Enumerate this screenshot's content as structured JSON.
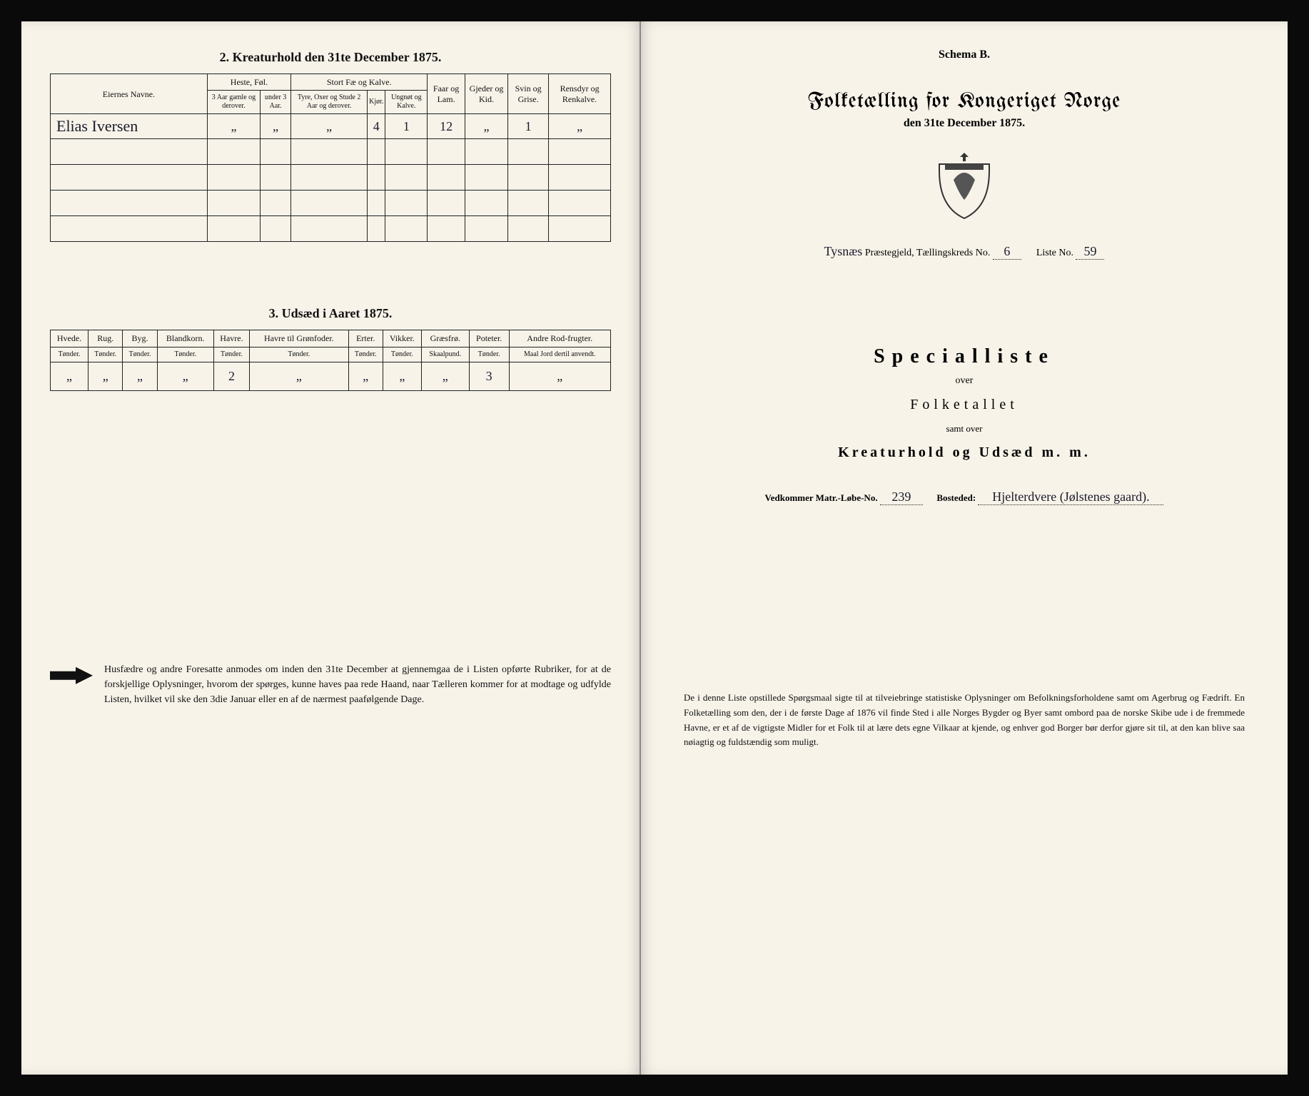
{
  "left": {
    "section2_title": "2. Kreaturhold den 31te December 1875.",
    "section3_title": "3. Udsæd i Aaret 1875.",
    "table2": {
      "col_eier": "Eiernes Navne.",
      "grp_heste": "Heste, Føl.",
      "grp_stort": "Stort Fæ og Kalve.",
      "col_faar": "Faar og Lam.",
      "col_gjeder": "Gjeder og Kid.",
      "col_svin": "Svin og Grise.",
      "col_rensdyr": "Rensdyr og Renkalve.",
      "sub_h1": "3 Aar gamle og derover.",
      "sub_h2": "under 3 Aar.",
      "sub_s1": "Tyre, Oxer og Stude 2 Aar og derover.",
      "sub_s2": "Kjør.",
      "sub_s3": "Ungnøt og Kalve.",
      "row1": {
        "navn": "Elias Iversen",
        "h1": "„",
        "h2": "„",
        "s1": "„",
        "s2": "4",
        "s3": "1",
        "faar": "12",
        "gjed": "„",
        "svin": "1",
        "ren": "„"
      }
    },
    "table3": {
      "cols": [
        {
          "top": "Hvede.",
          "sub": "Tønder."
        },
        {
          "top": "Rug.",
          "sub": "Tønder."
        },
        {
          "top": "Byg.",
          "sub": "Tønder."
        },
        {
          "top": "Blandkorn.",
          "sub": "Tønder."
        },
        {
          "top": "Havre.",
          "sub": "Tønder."
        },
        {
          "top": "Havre til Grønfoder.",
          "sub": "Tønder."
        },
        {
          "top": "Erter.",
          "sub": "Tønder."
        },
        {
          "top": "Vikker.",
          "sub": "Tønder."
        },
        {
          "top": "Græsfrø.",
          "sub": "Skaalpund."
        },
        {
          "top": "Poteter.",
          "sub": "Tønder."
        },
        {
          "top": "Andre Rod-frugter.",
          "sub": "Maal Jord dertil anvendt."
        }
      ],
      "row": [
        "„",
        "„",
        "„",
        "„",
        "2",
        "„",
        "„",
        "„",
        "„",
        "3",
        "„"
      ]
    },
    "instruction": "Husfædre og andre Foresatte anmodes om inden den 31te December at gjennemgaa de i Listen opførte Rubriker, for at de forskjellige Oplysninger, hvorom der spørges, kunne haves paa rede Haand, naar Tælleren kommer for at modtage og udfylde Listen, hvilket vil ske den 3die Januar eller en af de nærmest paafølgende Dage."
  },
  "right": {
    "schema": "Schema B.",
    "main_title": "Folketælling for Kongeriget Norge",
    "sub_title": "den 31te December 1875.",
    "loc_prefix": "Tysnæs",
    "loc_label1": "Præstegjeld, Tællingskreds No.",
    "loc_val1": "6",
    "loc_label2": "Liste No.",
    "loc_val2": "59",
    "special": "Specialliste",
    "over": "over",
    "folketallet": "Folketallet",
    "samt": "samt over",
    "kreatur": "Kreaturhold og Udsæd m. m.",
    "vedk_label1": "Vedkommer Matr.-Løbe-No.",
    "vedk_val1": "239",
    "vedk_label2": "Bosteded:",
    "vedk_val2": "Hjelterdvere (Jølstenes gaard).",
    "instruction": "De i denne Liste opstillede Spørgsmaal sigte til at tilveiebringe statistiske Oplysninger om Befolkningsforholdene samt om Agerbrug og Fædrift. En Folketælling som den, der i de første Dage af 1876 vil finde Sted i alle Norges Bygder og Byer samt ombord paa de norske Skibe ude i de fremmede Havne, er et af de vigtigste Midler for et Folk til at lære dets egne Vilkaar at kjende, og enhver god Borger bør derfor gjøre sit til, at den kan blive saa nøiagtig og fuldstændig som muligt."
  }
}
